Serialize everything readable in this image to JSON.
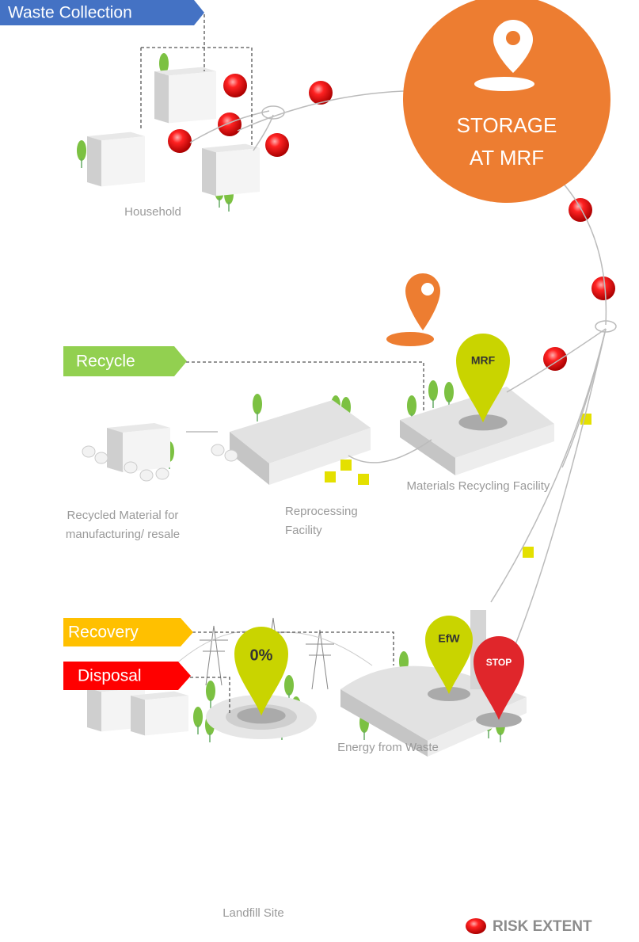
{
  "collection": {
    "tag": "Waste Collection",
    "site": "Household"
  },
  "storage": {
    "lines": [
      "STORAGE",
      "AT MRF"
    ]
  },
  "recycle": {
    "tag": "Recycle",
    "pin": "MRF",
    "sites": {
      "mrf": "Materials Recycling Facility",
      "reprocessing": [
        "Reprocessing",
        "Facility"
      ],
      "recycled": [
        "Recycled Material for",
        "manufacturing/ resale"
      ]
    }
  },
  "recovery": {
    "tag": "Recovery",
    "pin": "EfW",
    "site": "Energy from Waste"
  },
  "disposal": {
    "tag": "Disposal",
    "pin": "0%",
    "site": "Landfill Site"
  },
  "stop": "STOP",
  "legend": "RISK EXTENT"
}
